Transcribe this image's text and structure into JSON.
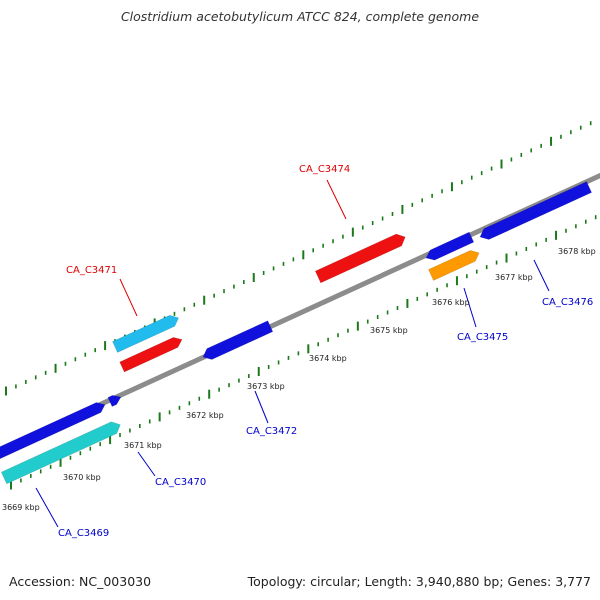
{
  "title": "Clostridium acetobutylicum ATCC 824, complete genome",
  "footer": {
    "accession": "Accession: NC_003030",
    "summary": "Topology: circular; Length: 3,940,880 bp; Genes: 3,777"
  },
  "colors": {
    "backbone": "#8c8c8c",
    "ticks": "#1a7a1a",
    "forward_label": "#e00000",
    "reverse_label": "#0000cc",
    "red": "#ee1111",
    "blue": "#1111dd",
    "lightblue": "#22bbee",
    "teal": "#22cccc",
    "orange": "#ff9900"
  },
  "ruler": {
    "unit": "kbp",
    "labels": [
      "3669 kbp",
      "3670 kbp",
      "3671 kbp",
      "3672 kbp",
      "3673 kbp",
      "3674 kbp",
      "3675 kbp",
      "3676 kbp",
      "3677 kbp",
      "3678 kbp"
    ]
  },
  "genes": [
    {
      "label": "CA_C3469",
      "strand": "reverse",
      "color": "teal",
      "labeled": true
    },
    {
      "label": "",
      "strand": "reverse",
      "color": "blue",
      "labeled": false
    },
    {
      "label": "",
      "strand": "reverse",
      "color": "blue",
      "labeled": false
    },
    {
      "label": "CA_C3470",
      "strand": "reverse",
      "color": "teal",
      "labeled": true
    },
    {
      "label": "CA_C3471",
      "strand": "forward",
      "color": "lightblue",
      "labeled": true
    },
    {
      "label": "",
      "strand": "forward",
      "color": "red",
      "labeled": false
    },
    {
      "label": "CA_C3472",
      "strand": "reverse",
      "color": "blue",
      "labeled": true
    },
    {
      "label": "CA_C3474",
      "strand": "forward",
      "color": "red",
      "labeled": true
    },
    {
      "label": "",
      "strand": "reverse",
      "color": "blue",
      "labeled": false
    },
    {
      "label": "CA_C3475",
      "strand": "reverse",
      "color": "orange",
      "labeled": true
    },
    {
      "label": "CA_C3476",
      "strand": "reverse",
      "color": "blue",
      "labeled": true
    }
  ]
}
